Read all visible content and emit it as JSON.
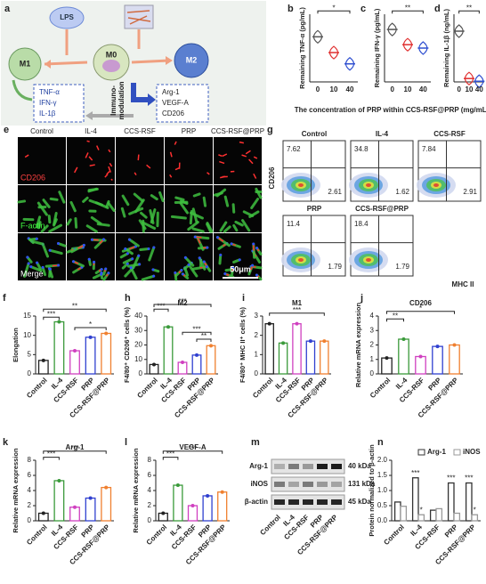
{
  "chart_data": [
    {
      "panel": "b",
      "type": "violin",
      "ylabel": "Remaining TNF-α (pg/mL)",
      "categories": [
        "0",
        "10",
        "40"
      ],
      "values": [
        250,
        215,
        190
      ],
      "colors": [
        "#555555",
        "#e03030",
        "#3050d0"
      ],
      "ylim": [
        150,
        300
      ],
      "annotations": [
        "*"
      ]
    },
    {
      "panel": "c",
      "type": "violin",
      "ylabel": "Remaining IFN-γ (pg/mL)",
      "categories": [
        "0",
        "10",
        "40"
      ],
      "values": [
        5.1,
        4.2,
        4.0
      ],
      "colors": [
        "#555555",
        "#e03030",
        "#3050d0"
      ],
      "ylim": [
        2,
        6
      ],
      "annotations": [
        "**"
      ]
    },
    {
      "panel": "d",
      "type": "violin",
      "ylabel": "Remaining IL-1β (ng/mL)",
      "categories": [
        "0",
        "10",
        "40"
      ],
      "values": [
        1.5,
        0.1,
        0.02
      ],
      "colors": [
        "#555555",
        "#e03030",
        "#3050d0"
      ],
      "ylim": [
        0,
        2
      ],
      "annotations": [
        "**"
      ]
    },
    {
      "panel": "f",
      "type": "bar",
      "ylabel": "Elongation",
      "categories": [
        "Control",
        "IL-4",
        "CCS-RSF",
        "PRP",
        "CCS-RSF@PRP"
      ],
      "values": [
        3.5,
        13.5,
        6,
        9.5,
        10.5
      ],
      "colors": [
        "#222222",
        "#3a9a3a",
        "#d040c0",
        "#3040d0",
        "#f08030"
      ],
      "ylim": [
        0,
        15
      ],
      "yticks": [
        0,
        5,
        10,
        15
      ],
      "annotations": [
        "***",
        "**",
        "*"
      ]
    },
    {
      "panel": "h",
      "type": "bar",
      "title": "M2",
      "ylabel": "F4/80⁺ CD206⁺ cells (%)",
      "categories": [
        "Control",
        "IL-4",
        "CCS-RSF",
        "PRP",
        "CCS-RSF@PRP"
      ],
      "values": [
        6.5,
        32.5,
        8,
        13,
        19.5
      ],
      "colors": [
        "#222222",
        "#3a9a3a",
        "#d040c0",
        "#3040d0",
        "#f08030"
      ],
      "ylim": [
        0,
        40
      ],
      "yticks": [
        0,
        10,
        20,
        30,
        40
      ],
      "annotations": [
        "***",
        "***",
        "***",
        "**"
      ]
    },
    {
      "panel": "i",
      "type": "bar",
      "title": "M1",
      "ylabel": "F4/80⁺ MHC II⁺ cells (%)",
      "categories": [
        "Control",
        "IL-4",
        "CCS-RSF",
        "PRP",
        "CCS-RSF@PRP"
      ],
      "values": [
        2.6,
        1.6,
        2.6,
        1.7,
        1.7
      ],
      "colors": [
        "#222222",
        "#3a9a3a",
        "#d040c0",
        "#3040d0",
        "#f08030"
      ],
      "ylim": [
        0,
        3
      ],
      "yticks": [
        0,
        1,
        2,
        3
      ],
      "annotations": [
        "***"
      ]
    },
    {
      "panel": "j",
      "type": "bar",
      "title": "CD206",
      "ylabel": "Relative mRNA expression",
      "categories": [
        "Control",
        "IL-4",
        "CCS-RSF",
        "PRP",
        "CCS-RSF@PRP"
      ],
      "values": [
        1.1,
        2.4,
        1.2,
        1.9,
        2.0
      ],
      "colors": [
        "#222222",
        "#3a9a3a",
        "#d040c0",
        "#3040d0",
        "#f08030"
      ],
      "ylim": [
        0,
        4
      ],
      "yticks": [
        0,
        1,
        2,
        3,
        4
      ],
      "annotations": [
        "**",
        "*"
      ]
    },
    {
      "panel": "k",
      "type": "bar",
      "title": "Arg-1",
      "ylabel": "Relative mRNA expression",
      "categories": [
        "Control",
        "IL-4",
        "CCS-RSF",
        "PRP",
        "CCS-RSF@PRP"
      ],
      "values": [
        1,
        5.3,
        1.8,
        3,
        4.4
      ],
      "colors": [
        "#222222",
        "#3a9a3a",
        "#d040c0",
        "#3040d0",
        "#f08030"
      ],
      "ylim": [
        0,
        8
      ],
      "yticks": [
        0,
        2,
        4,
        6,
        8
      ],
      "annotations": [
        "***",
        "***"
      ]
    },
    {
      "panel": "l",
      "type": "bar",
      "title": "VEGF-A",
      "ylabel": "Relative mRNA expression",
      "categories": [
        "Control",
        "IL-4",
        "CCS-RSF",
        "PRP",
        "CCS-RSF@PRP"
      ],
      "values": [
        1,
        4.7,
        2,
        3.3,
        3.8
      ],
      "colors": [
        "#222222",
        "#3a9a3a",
        "#d040c0",
        "#3040d0",
        "#f08030"
      ],
      "ylim": [
        0,
        8
      ],
      "yticks": [
        0,
        2,
        4,
        6,
        8
      ],
      "annotations": [
        "***",
        "***"
      ]
    },
    {
      "panel": "n",
      "type": "grouped_bar",
      "ylabel": "Protein normalized to β-actin",
      "categories": [
        "Control",
        "IL-4",
        "CCS-RSF",
        "PRP",
        "CCS-RSF@PRP"
      ],
      "series": [
        {
          "name": "Arg-1",
          "color": "#333333",
          "values": [
            0.62,
            1.42,
            0.35,
            1.25,
            1.25
          ]
        },
        {
          "name": "iNOS",
          "color": "#999999",
          "values": [
            0.48,
            0.2,
            0.4,
            0.25,
            0.2
          ]
        }
      ],
      "ylim": [
        0,
        2
      ],
      "yticks": [
        {
          "value": 0,
          "label": "0.0"
        },
        0.5,
        {
          "value": 1,
          "label": "1.0"
        },
        1.5,
        {
          "value": 2,
          "label": "2.0"
        }
      ],
      "annotations": [
        "***",
        "*",
        "***",
        "***",
        "*"
      ]
    }
  ],
  "shared_x_label": "The concentration of PRP within CCS-RSF@PRP (mg/mL)",
  "diagram": {
    "panel": "a",
    "lps": "LPS",
    "m1": "M1",
    "m0": "M0",
    "m2": "M2",
    "immuno": "Immuno-",
    "modulation": "modulation",
    "m1_markers": [
      "TNF-α",
      "IFN-γ",
      "IL-1β"
    ],
    "m2_markers": [
      "Arg-1",
      "VEGF-A",
      "CD206"
    ]
  },
  "images": {
    "panel": "e",
    "columns": [
      "Control",
      "IL-4",
      "CCS-RSF",
      "PRP",
      "CCS-RSF@PRP"
    ],
    "rows": [
      "CD206",
      "F-actin",
      "Merge"
    ],
    "scale_bar": "50μm"
  },
  "flow": {
    "panel": "g",
    "y_label": "CD206",
    "x_label": "MHC II",
    "plots": [
      {
        "name": "Control",
        "upper": 7.62,
        "lower": 2.61
      },
      {
        "name": "IL-4",
        "upper": 34.8,
        "lower": 1.62
      },
      {
        "name": "CCS-RSF",
        "upper": 7.84,
        "lower": 2.91
      },
      {
        "name": "PRP",
        "upper": 11.4,
        "lower": 1.79
      },
      {
        "name": "CCS-RSF@PRP",
        "upper": 18.4,
        "lower": 1.79
      }
    ]
  },
  "blot": {
    "panel": "m",
    "rows": [
      {
        "name": "Arg-1",
        "size": "40 kDa"
      },
      {
        "name": "iNOS",
        "size": "131 kDa"
      },
      {
        "name": "β-actin",
        "size": "45 kDa"
      }
    ],
    "columns": [
      "Control",
      "IL-4",
      "CCS-RSF",
      "PRP",
      "CCS-RSF@PRP"
    ]
  }
}
